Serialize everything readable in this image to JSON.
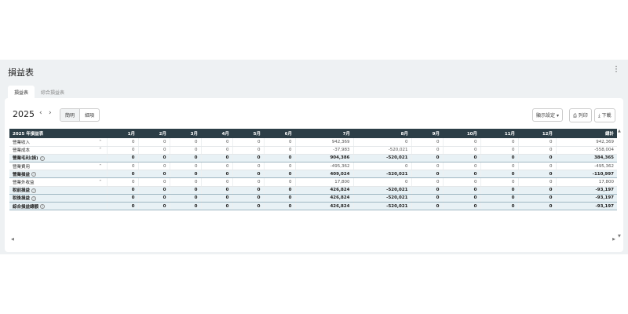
{
  "page": {
    "title": "損益表",
    "menu_icon": "kebab-menu-icon"
  },
  "tabs": [
    {
      "label": "損益表",
      "active": true
    },
    {
      "label": "綜合損益表",
      "active": false
    }
  ],
  "toolbar": {
    "year": "2025",
    "prev": "‹",
    "next": "›",
    "view_options": [
      "簡明",
      "細項"
    ],
    "display_settings": "顯示設定",
    "print": "列印",
    "download": "下載"
  },
  "table": {
    "headers": [
      "2025 年損益表",
      "",
      "1月",
      "2月",
      "3月",
      "4月",
      "5月",
      "6月",
      "7月",
      "8月",
      "9月",
      "10月",
      "11月",
      "12月",
      "總計"
    ],
    "rows": [
      {
        "label": "營業收入",
        "expand": true,
        "summary": false,
        "help": false,
        "values": [
          "0",
          "0",
          "0",
          "0",
          "0",
          "0",
          "942,369",
          "0",
          "0",
          "0",
          "0",
          "0",
          "942,369"
        ]
      },
      {
        "label": "營業成本",
        "expand": true,
        "summary": false,
        "help": false,
        "values": [
          "0",
          "0",
          "0",
          "0",
          "0",
          "0",
          "-37,983",
          "-520,021",
          "0",
          "0",
          "0",
          "0",
          "-558,004"
        ]
      },
      {
        "label": "營業毛利(損)",
        "expand": false,
        "summary": true,
        "help": true,
        "values": [
          "0",
          "0",
          "0",
          "0",
          "0",
          "0",
          "904,386",
          "-520,021",
          "0",
          "0",
          "0",
          "0",
          "384,365"
        ]
      },
      {
        "label": "營業費用",
        "expand": true,
        "summary": false,
        "help": false,
        "values": [
          "0",
          "0",
          "0",
          "0",
          "0",
          "0",
          "-495,362",
          "0",
          "0",
          "0",
          "0",
          "0",
          "-495,362"
        ]
      },
      {
        "label": "營業損益",
        "expand": false,
        "summary": true,
        "help": true,
        "values": [
          "0",
          "0",
          "0",
          "0",
          "0",
          "0",
          "409,024",
          "-520,021",
          "0",
          "0",
          "0",
          "0",
          "-110,997"
        ]
      },
      {
        "label": "營業外收益",
        "expand": true,
        "summary": false,
        "help": false,
        "values": [
          "0",
          "0",
          "0",
          "0",
          "0",
          "0",
          "17,800",
          "0",
          "0",
          "0",
          "0",
          "0",
          "17,800"
        ]
      },
      {
        "label": "稅前損益",
        "expand": false,
        "summary": true,
        "help": true,
        "values": [
          "0",
          "0",
          "0",
          "0",
          "0",
          "0",
          "426,824",
          "-520,021",
          "0",
          "0",
          "0",
          "0",
          "-93,197"
        ]
      },
      {
        "label": "稅後損益",
        "expand": false,
        "summary": true,
        "help": true,
        "values": [
          "0",
          "0",
          "0",
          "0",
          "0",
          "0",
          "426,824",
          "-520,021",
          "0",
          "0",
          "0",
          "0",
          "-93,197"
        ]
      },
      {
        "label": "綜合損益總額",
        "expand": false,
        "summary": true,
        "help": true,
        "values": [
          "0",
          "0",
          "0",
          "0",
          "0",
          "0",
          "426,824",
          "-520,021",
          "0",
          "0",
          "0",
          "0",
          "-93,197"
        ]
      }
    ]
  },
  "colors": {
    "header_bg": "#2c3e47",
    "summary_bg": "#e8f1f5",
    "app_bg": "#eef1f3"
  }
}
